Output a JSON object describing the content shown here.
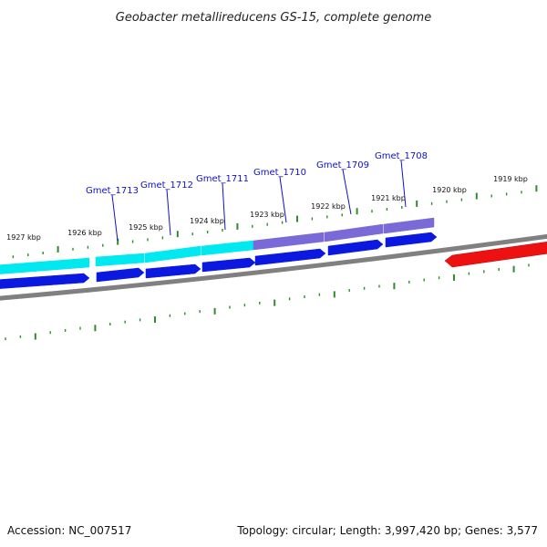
{
  "title": "Geobacter metallireducens GS-15, complete genome",
  "footer": {
    "accession": "Accession: NC_007517",
    "summary": "Topology: circular; Length: 3,997,420 bp; Genes: 3,577"
  },
  "scale_labels": [
    "1927 kbp",
    "1926 kbp",
    "1925 kbp",
    "1924 kbp",
    "1923 kbp",
    "1922 kbp",
    "1921 kbp",
    "1920 kbp",
    "1919 kbp"
  ],
  "gene_labels": [
    "Gmet_1713",
    "Gmet_1712",
    "Gmet_1711",
    "Gmet_1710",
    "Gmet_1709",
    "Gmet_1708"
  ],
  "colors": {
    "backbone": "#808080",
    "tick": "#2e8b2e",
    "cyan_feature": "#00e8f0",
    "purple_feature": "#7a6ad8",
    "blue_cds": "#0a18e0",
    "red_feature": "#ee1111",
    "label_blue": "#1010cc"
  }
}
